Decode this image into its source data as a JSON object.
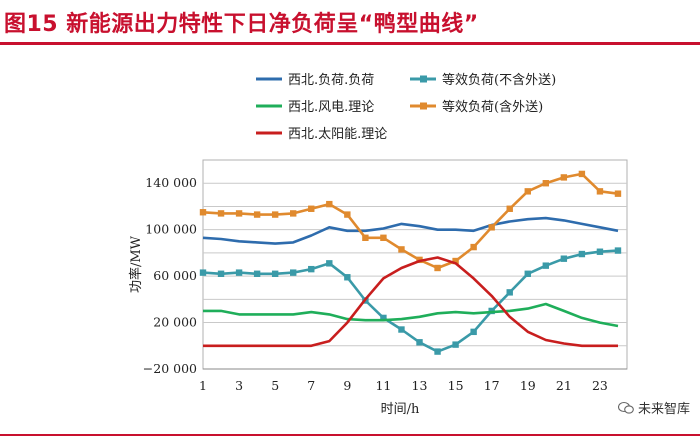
{
  "header": {
    "title": "图15 新能源出力特性下日净负荷呈“鸭型曲线”"
  },
  "watermark": {
    "text": "未来智库"
  },
  "chart_data": {
    "type": "line",
    "title": "图15 新能源出力特性下日净负荷呈“鸭型曲线”",
    "xlabel": "时间/h",
    "ylabel": "功率/MW",
    "xlim": [
      1,
      24.5
    ],
    "ylim": [
      -20000,
      160000
    ],
    "xticks": [
      1,
      3,
      5,
      7,
      9,
      11,
      13,
      15,
      17,
      19,
      21,
      23
    ],
    "xtick_labels": [
      "1",
      "3",
      "5",
      "7",
      "9",
      "11",
      "13",
      "15",
      "17",
      "19",
      "21",
      "23"
    ],
    "yticks": [
      -20000,
      20000,
      60000,
      100000,
      140000
    ],
    "ytick_labels": [
      "−20 000",
      "20 000",
      "60 000",
      "100 000",
      "140 000"
    ],
    "grid": "horizontal",
    "series": [
      {
        "name": "西北.负荷.负荷",
        "color": "#2e6cad",
        "marker": "none",
        "x": [
          1,
          2,
          3,
          4,
          5,
          6,
          7,
          8,
          9,
          10,
          11,
          12,
          13,
          14,
          15,
          16,
          17,
          18,
          19,
          20,
          21,
          22,
          23,
          24
        ],
        "values": [
          93000,
          92000,
          90000,
          89000,
          88000,
          89000,
          95000,
          102000,
          99000,
          99000,
          101000,
          105000,
          103000,
          100000,
          100000,
          99000,
          104000,
          107000,
          109000,
          110000,
          108000,
          105000,
          102000,
          99000
        ]
      },
      {
        "name": "等效负荷(不含外送)",
        "color": "#3a9aa8",
        "marker": "square",
        "x": [
          1,
          2,
          3,
          4,
          5,
          6,
          7,
          8,
          9,
          10,
          11,
          12,
          13,
          14,
          15,
          16,
          17,
          18,
          19,
          20,
          21,
          22,
          23,
          24
        ],
        "values": [
          63000,
          62000,
          63000,
          62000,
          62000,
          63000,
          66000,
          71000,
          59000,
          39000,
          24000,
          14000,
          3000,
          -5000,
          1000,
          12000,
          30000,
          46000,
          62000,
          69000,
          75000,
          79000,
          81000,
          82000
        ]
      },
      {
        "name": "西北.风电.理论",
        "color": "#1fae5a",
        "marker": "none",
        "x": [
          1,
          2,
          3,
          4,
          5,
          6,
          7,
          8,
          9,
          10,
          11,
          12,
          13,
          14,
          15,
          16,
          17,
          18,
          19,
          20,
          21,
          22,
          23,
          24
        ],
        "values": [
          30000,
          30000,
          27000,
          27000,
          27000,
          27000,
          29000,
          27000,
          23000,
          22000,
          22000,
          23000,
          25000,
          28000,
          29000,
          28000,
          29000,
          30000,
          32000,
          36000,
          30000,
          24000,
          20000,
          17000
        ]
      },
      {
        "name": "等效负荷(含外送)",
        "color": "#e08a2e",
        "marker": "square",
        "x": [
          1,
          2,
          3,
          4,
          5,
          6,
          7,
          8,
          9,
          10,
          11,
          12,
          13,
          14,
          15,
          16,
          17,
          18,
          19,
          20,
          21,
          22,
          23,
          24
        ],
        "values": [
          115000,
          114000,
          114000,
          113000,
          113000,
          114000,
          118000,
          122000,
          113000,
          93000,
          93000,
          83000,
          74000,
          67000,
          73000,
          85000,
          102000,
          118000,
          133000,
          140000,
          145000,
          148000,
          133000,
          131000
        ]
      },
      {
        "name": "西北.太阳能.理论",
        "color": "#c81e1e",
        "marker": "none",
        "x": [
          1,
          2,
          3,
          4,
          5,
          6,
          7,
          8,
          9,
          10,
          11,
          12,
          13,
          14,
          15,
          16,
          17,
          18,
          19,
          20,
          21,
          22,
          23,
          24
        ],
        "values": [
          0,
          0,
          0,
          0,
          0,
          0,
          0,
          4000,
          20000,
          40000,
          58000,
          67000,
          73000,
          76000,
          71000,
          58000,
          43000,
          25000,
          12000,
          5000,
          2000,
          0,
          0,
          0
        ]
      }
    ],
    "legend": [
      {
        "label": "西北.负荷.负荷",
        "series": 0
      },
      {
        "label": "等效负荷(不含外送)",
        "series": 1
      },
      {
        "label": "西北.风电.理论",
        "series": 2
      },
      {
        "label": "等效负荷(含外送)",
        "series": 3
      },
      {
        "label": "西北.太阳能.理论",
        "series": 4
      }
    ]
  }
}
